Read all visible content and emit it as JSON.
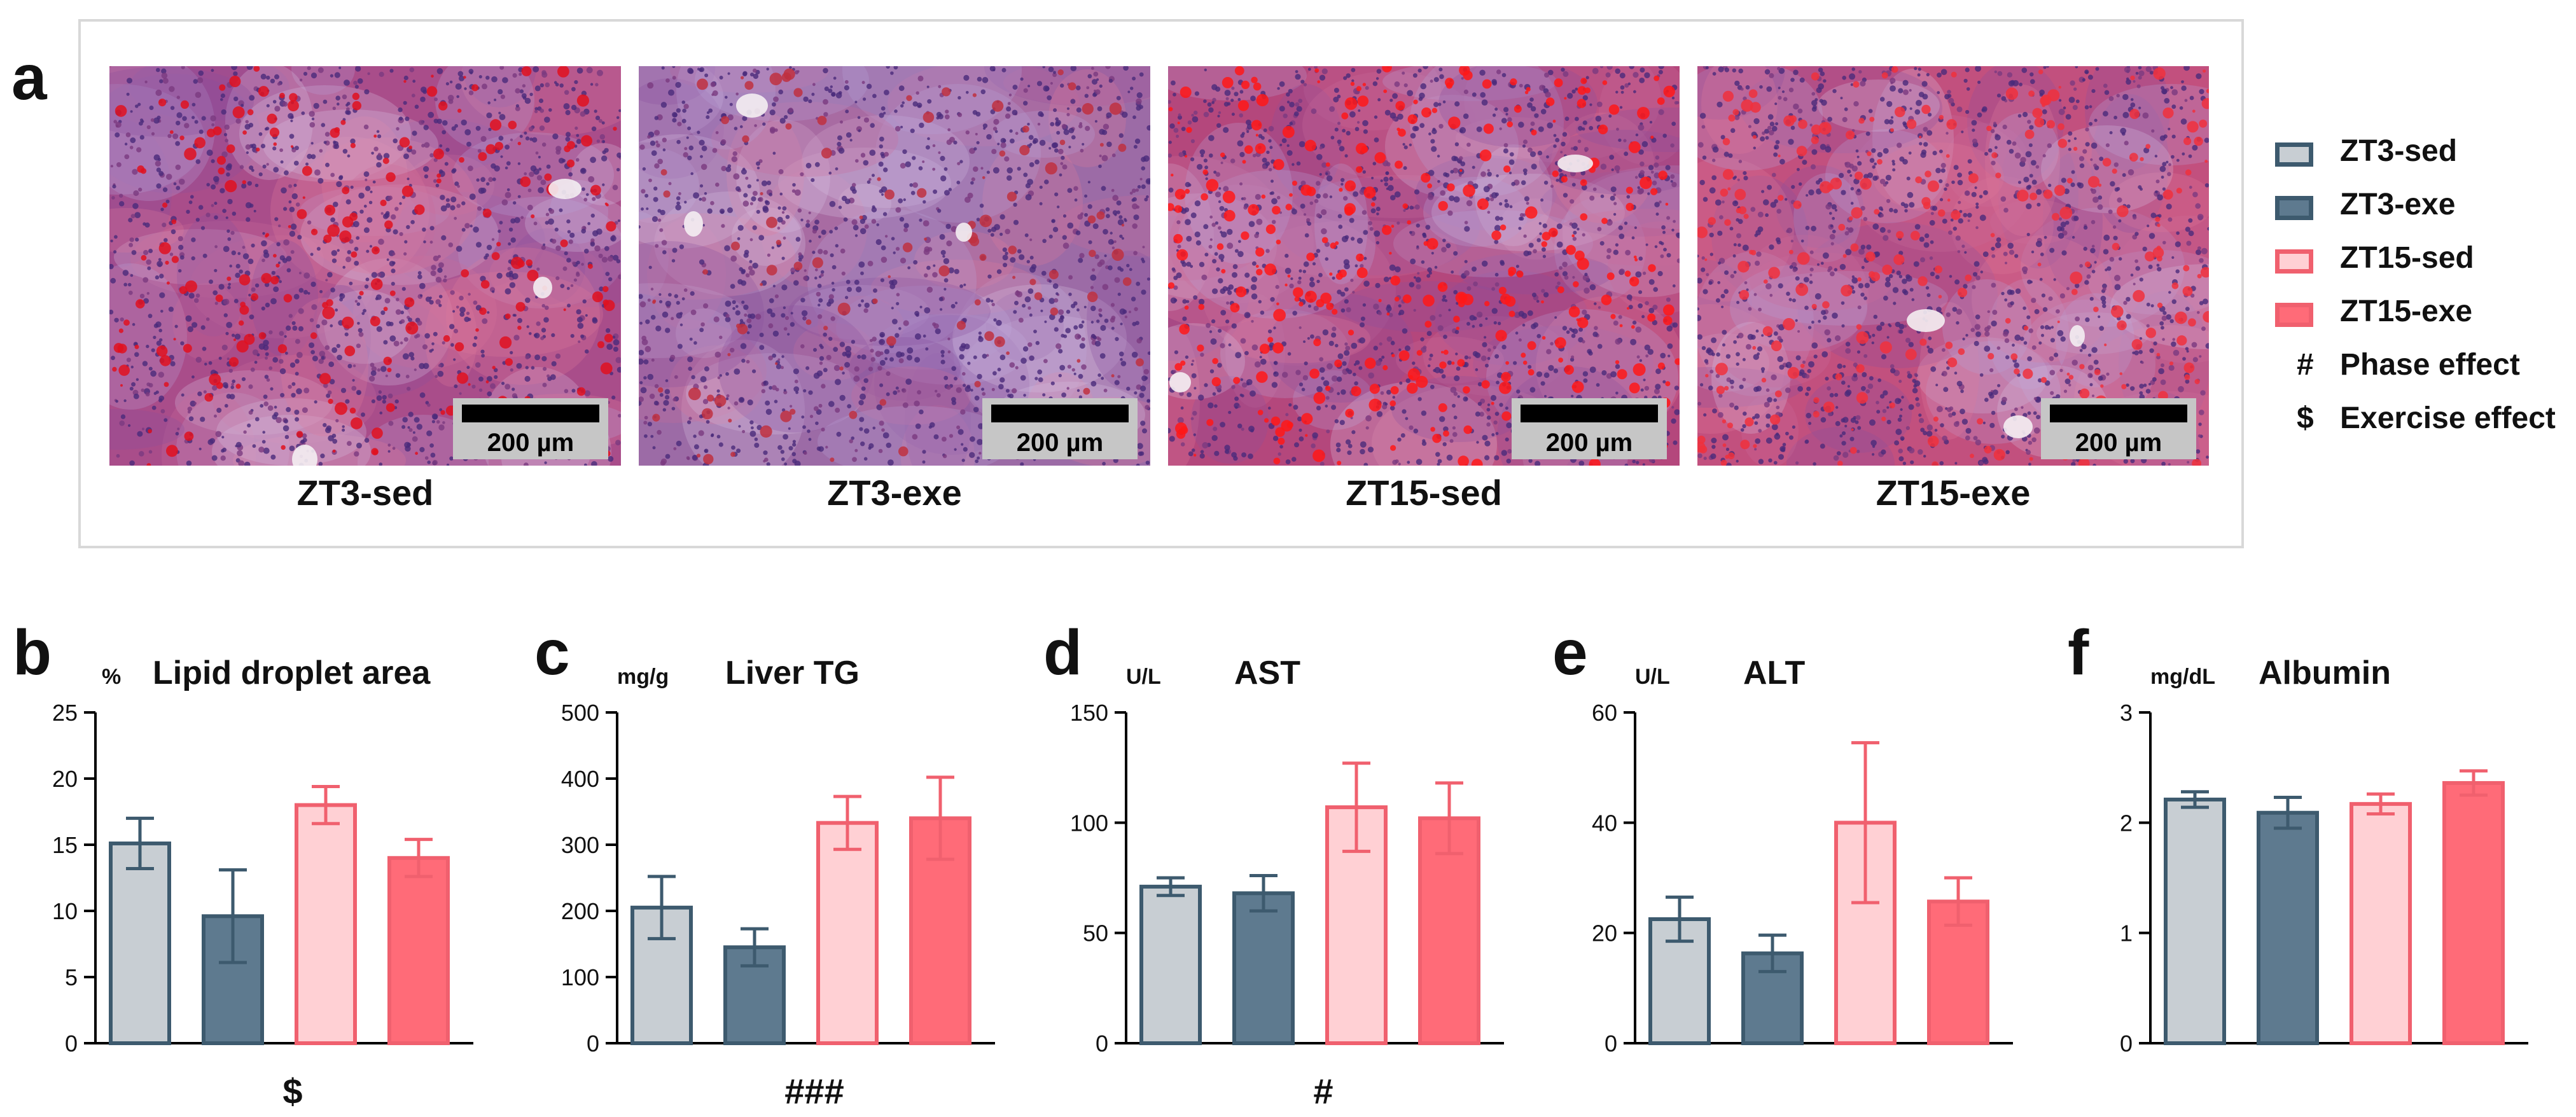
{
  "panel_a": {
    "letter": "a",
    "images": [
      {
        "label": "ZT3-sed",
        "scale": "200 µm",
        "tint": "#a94d8a",
        "droplet": "#e0101e"
      },
      {
        "label": "ZT3-exe",
        "scale": "200 µm",
        "tint": "#9c6ba6",
        "droplet": "#c03040"
      },
      {
        "label": "ZT15-sed",
        "scale": "200 µm",
        "tint": "#b4477c",
        "droplet": "#ff1818"
      },
      {
        "label": "ZT15-exe",
        "scale": "200 µm",
        "tint": "#c2507e",
        "droplet": "#f0303c"
      }
    ]
  },
  "legend": {
    "groups": [
      {
        "name": "ZT3-sed",
        "fill": "#c8ced3",
        "stroke": "#3d5a6e"
      },
      {
        "name": "ZT3-exe",
        "fill": "#5e7a8f",
        "stroke": "#3d5a6e"
      },
      {
        "name": "ZT15-sed",
        "fill": "#ffd0d4",
        "stroke": "#f0606e"
      },
      {
        "name": "ZT15-exe",
        "fill": "#ff6b78",
        "stroke": "#f0606e"
      }
    ],
    "symbols": [
      {
        "symbol": "#",
        "text": "Phase effect"
      },
      {
        "symbol": "$",
        "text": "Exercise effect"
      }
    ]
  },
  "chart_data": [
    {
      "type": "bar",
      "letter": "b",
      "title": "Lipid droplet area",
      "unit": "%",
      "categories": [
        "ZT3-sed",
        "ZT3-exe",
        "ZT15-sed",
        "ZT15-exe"
      ],
      "values": [
        15.1,
        9.6,
        18.0,
        14.0
      ],
      "errors": [
        1.9,
        3.5,
        1.4,
        1.4
      ],
      "ylim": [
        0,
        25
      ],
      "yticks": [
        "0",
        "5",
        "10",
        "15",
        "20",
        "25"
      ],
      "tickvals": [
        0,
        5,
        10,
        15,
        20,
        25
      ],
      "significance": "$",
      "show_categories": false
    },
    {
      "type": "bar",
      "letter": "c",
      "title": "Liver TG",
      "unit": "mg/g",
      "categories": [
        "ZT3-sed",
        "ZT3-exe",
        "ZT15-sed",
        "ZT15-exe"
      ],
      "values": [
        205,
        145,
        333,
        340
      ],
      "errors": [
        47,
        28,
        40,
        62
      ],
      "ylim": [
        0,
        500
      ],
      "yticks": [
        "0",
        "100",
        "200",
        "300",
        "400",
        "500"
      ],
      "tickvals": [
        0,
        100,
        200,
        300,
        400,
        500
      ],
      "significance": "###",
      "show_categories": false
    },
    {
      "type": "bar",
      "letter": "d",
      "title": "AST",
      "unit": "U/L",
      "categories": [
        "ZT3-sed",
        "ZT3-exe",
        "ZT15-sed",
        "ZT15-exe"
      ],
      "values": [
        71,
        68,
        107,
        102
      ],
      "errors": [
        4,
        8,
        20,
        16
      ],
      "ylim": [
        0,
        150
      ],
      "yticks": [
        "0",
        "50",
        "100",
        "150"
      ],
      "tickvals": [
        0,
        50,
        100,
        150
      ],
      "significance": "#",
      "show_categories": false
    },
    {
      "type": "bar",
      "letter": "e",
      "title": "ALT",
      "unit": "U/L",
      "categories": [
        "ZT3-sed",
        "ZT3-exe",
        "ZT15-sed",
        "ZT15-exe"
      ],
      "values": [
        22.5,
        16.3,
        40.0,
        25.7
      ],
      "errors": [
        4.0,
        3.3,
        14.5,
        4.3
      ],
      "ylim": [
        0,
        60
      ],
      "yticks": [
        "0",
        "20",
        "40",
        "60"
      ],
      "tickvals": [
        0,
        20,
        40,
        60
      ],
      "significance": "",
      "show_categories": false
    },
    {
      "type": "bar",
      "letter": "f",
      "title": "Albumin",
      "unit": "mg/dL",
      "categories": [
        "ZT3-sed",
        "ZT3-exe",
        "ZT15-sed",
        "ZT15-exe"
      ],
      "values": [
        2.21,
        2.09,
        2.17,
        2.36
      ],
      "errors": [
        0.07,
        0.14,
        0.09,
        0.11
      ],
      "ylim": [
        0,
        3
      ],
      "yticks": [
        "0",
        "1",
        "2",
        "3"
      ],
      "tickvals": [
        0,
        1,
        2,
        3
      ],
      "significance": "",
      "show_categories": false
    }
  ]
}
